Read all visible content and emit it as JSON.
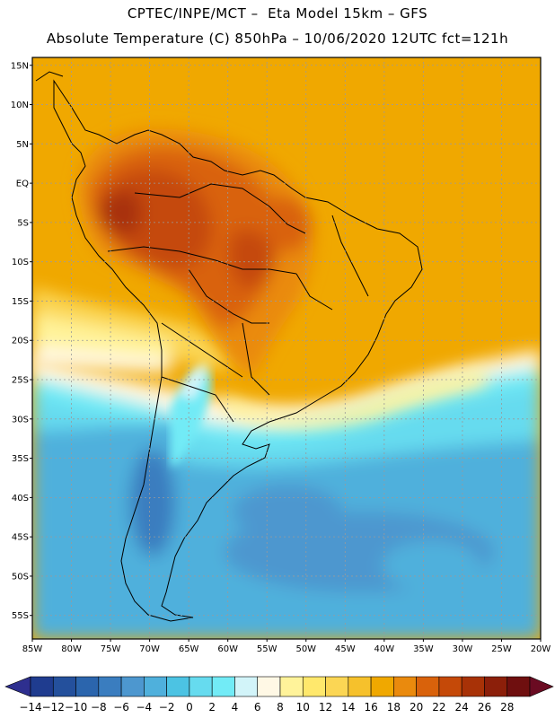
{
  "header": {
    "line1": "CPTEC/INPE/MCT –  Eta Model 15km – GFS",
    "line2": "Absolute Temperature (C) 850hPa – 10/06/2020 12UTC fct=121h"
  },
  "map": {
    "lon_range": [
      -85,
      -20
    ],
    "lat_range": [
      -58,
      16
    ],
    "lat_ticks": [
      "15N",
      "10N",
      "5N",
      "EQ",
      "5S",
      "10S",
      "15S",
      "20S",
      "25S",
      "30S",
      "35S",
      "40S",
      "45S",
      "50S",
      "55S"
    ],
    "lon_ticks": [
      "85W",
      "80W",
      "75W",
      "70W",
      "65W",
      "60W",
      "55W",
      "50W",
      "45W",
      "40W",
      "35W",
      "30W",
      "25W",
      "20W"
    ]
  },
  "colorbar": {
    "labels": [
      "-14",
      "-12",
      "-10",
      "-8",
      "-6",
      "-4",
      "-2",
      "0",
      "2",
      "4",
      "6",
      "8",
      "10",
      "12",
      "14",
      "16",
      "18",
      "20",
      "22",
      "24",
      "26",
      "28"
    ],
    "colors": [
      "#1f3c8f",
      "#24509c",
      "#2b65ad",
      "#3a7dbf",
      "#4d97cf",
      "#4fb0dc",
      "#4cc3e3",
      "#66dbef",
      "#72ebf6",
      "#d2f4f9",
      "#fff8e5",
      "#fff39a",
      "#ffe86c",
      "#fbd654",
      "#f6c12c",
      "#f0a800",
      "#ea8a0d",
      "#d9620b",
      "#c54908",
      "#a83207",
      "#8c1f0a",
      "#6f0f0f"
    ],
    "low_arrow_color": "#2e2f8f",
    "high_arrow_color": "#6a0b22"
  }
}
